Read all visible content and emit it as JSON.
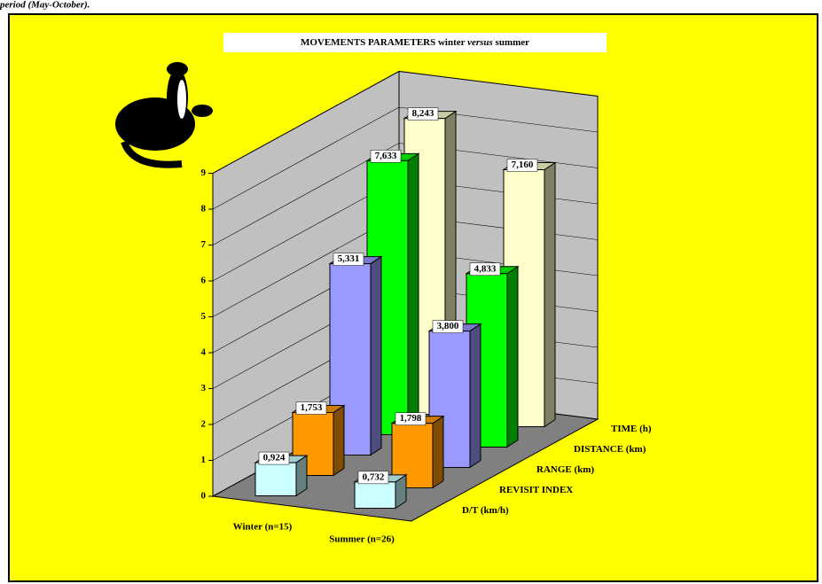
{
  "caption": "period (May-October).",
  "chart_data": {
    "type": "bar3d",
    "title_parts": [
      "MOVEMENTS PARAMETERS winter ",
      "versus",
      " summer"
    ],
    "categories": [
      "Winter (n=15)",
      "Summer (n=26)"
    ],
    "series": [
      {
        "name": "D/T (km/h)",
        "color": "#ccffff",
        "values": [
          0.924,
          0.732
        ],
        "value_labels": [
          "0,924",
          "0,732"
        ]
      },
      {
        "name": "REVISIT INDEX",
        "color": "#ff9900",
        "values": [
          1.753,
          1.798
        ],
        "value_labels": [
          "1,753",
          "1,798"
        ]
      },
      {
        "name": "RANGE (km)",
        "color": "#9999ff",
        "values": [
          5.331,
          3.8
        ],
        "value_labels": [
          "5,331",
          "3,800"
        ]
      },
      {
        "name": "DISTANCE (km)",
        "color": "#00ff00",
        "values": [
          7.633,
          4.833
        ],
        "value_labels": [
          "7,633",
          "4,833"
        ]
      },
      {
        "name": "TIME (h)",
        "color": "#ffffcc",
        "values": [
          8.243,
          7.16
        ],
        "value_labels": [
          "8,243",
          "7,160"
        ]
      }
    ],
    "ylim": [
      0,
      9
    ],
    "yticks": [
      0,
      1,
      2,
      3,
      4,
      5,
      6,
      7,
      8,
      9
    ],
    "grid": true
  }
}
